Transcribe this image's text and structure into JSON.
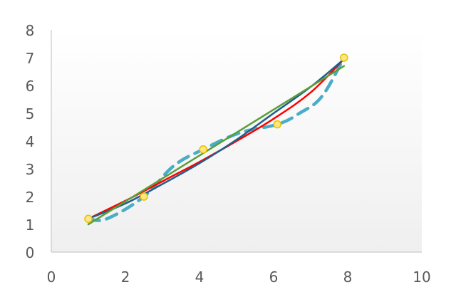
{
  "chart_data": {
    "type": "scatter",
    "title": "",
    "xlabel": "",
    "ylabel": "",
    "xlim": [
      0,
      10
    ],
    "ylim": [
      0,
      8
    ],
    "x_ticks": [
      0,
      2,
      4,
      6,
      8,
      10
    ],
    "y_ticks": [
      0,
      1,
      2,
      3,
      4,
      5,
      6,
      7,
      8
    ],
    "grid": false,
    "legend": "none",
    "points": {
      "x": [
        1,
        2.5,
        4.1,
        6.1,
        7.9
      ],
      "y": [
        1.2,
        2.0,
        3.7,
        4.6,
        7.0
      ],
      "color": "#ffe680",
      "edge_color": "#e5c100"
    },
    "series": [
      {
        "style": "dashed",
        "color": "#4bacc6",
        "x": [
          1,
          1.5,
          2.5,
          3.3,
          4.1,
          5.1,
          6.1,
          6.7,
          7.3,
          7.9
        ],
        "y": [
          1.2,
          1.2,
          2.0,
          3.1,
          3.7,
          4.3,
          4.6,
          5.0,
          5.6,
          7.0
        ]
      },
      {
        "style": "solid",
        "color": "#ff0000",
        "x": [
          1,
          2,
          3,
          4,
          5,
          6,
          7,
          7.9
        ],
        "y": [
          1.2,
          1.85,
          2.55,
          3.25,
          4.0,
          4.8,
          5.75,
          6.95
        ]
      },
      {
        "style": "solid",
        "color": "#1f5f8b",
        "x": [
          1,
          2,
          3,
          4,
          5,
          6,
          7,
          7.9
        ],
        "y": [
          1.2,
          1.75,
          2.45,
          3.2,
          4.05,
          5.0,
          5.95,
          6.95
        ]
      },
      {
        "style": "solid",
        "color": "#5a9e3a",
        "x": [
          1,
          7.9
        ],
        "y": [
          1.0,
          6.7
        ]
      }
    ]
  }
}
